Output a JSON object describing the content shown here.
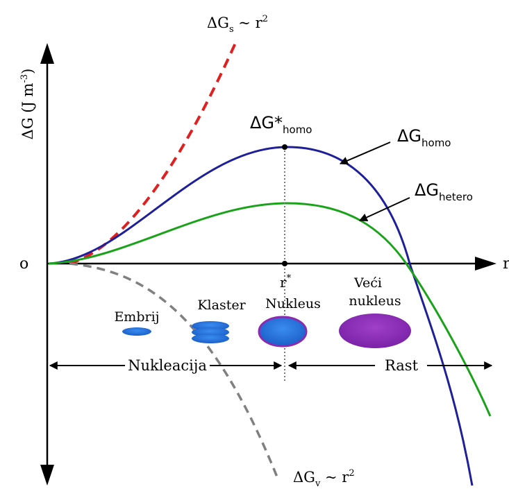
{
  "labels": {
    "y_axis": "ΔG (J m",
    "y_axis_exp": "-3",
    "y_axis_close": ")",
    "x_axis": "r",
    "origin": "o",
    "surface_term": "ΔG",
    "surface_sub": "s",
    "surface_rel": " ~ r",
    "surface_exp": "2",
    "volume_term": "ΔG",
    "volume_sub": "v",
    "volume_rel": " ~ r",
    "volume_exp": "2",
    "homo_peak": "ΔG*",
    "homo_peak_sub": "homo",
    "homo_curve": "ΔG",
    "homo_curve_sub": "homo",
    "hetero_curve": "ΔG",
    "hetero_curve_sub": "hetero",
    "r_star": "r",
    "r_star_sup": "*",
    "nucleation": "Nukleacija",
    "growth": "Rast"
  },
  "stages": {
    "embryo": "Embrij",
    "cluster": "Klaster",
    "nucleus": "Nukleus",
    "larger_nucleus_1": "Veći",
    "larger_nucleus_2": "nukleus"
  },
  "colors": {
    "homo": "#1f1f9a",
    "hetero": "#1aa31a",
    "surface": "#e02020",
    "volume": "#808080",
    "embryo_fill": "#1f6fd6",
    "nucleus_fill": "#1f6fd6",
    "nucleus_stroke": "#8a2bb0",
    "larger_nucleus_fill": "#8a2bb0"
  }
}
